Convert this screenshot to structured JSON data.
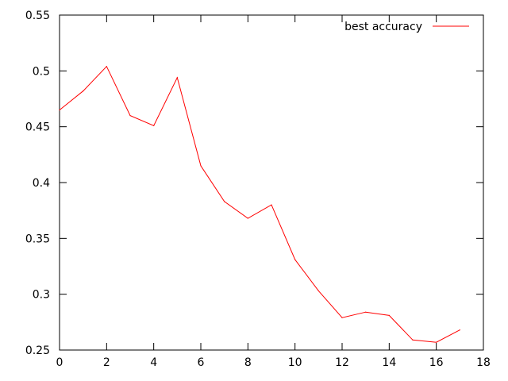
{
  "chart_data": {
    "type": "line",
    "title": "",
    "xlabel": "",
    "ylabel": "",
    "xlim": [
      0,
      18
    ],
    "ylim": [
      0.25,
      0.55
    ],
    "x_ticks": [
      0,
      2,
      4,
      6,
      8,
      10,
      12,
      14,
      16,
      18
    ],
    "x_tick_labels": [
      "0",
      "2",
      "4",
      "6",
      "8",
      "10",
      "12",
      "14",
      "16",
      "18"
    ],
    "y_ticks": [
      0.25,
      0.3,
      0.35,
      0.4,
      0.45,
      0.5,
      0.55
    ],
    "y_tick_labels": [
      "0.25",
      "0.3",
      "0.35",
      "0.4",
      "0.45",
      "0.5",
      "0.55"
    ],
    "grid": false,
    "legend_position": "top-right",
    "series": [
      {
        "name": "best accuracy",
        "color": "#ff0000",
        "x": [
          0,
          1,
          2,
          3,
          4,
          5,
          6,
          7,
          8,
          9,
          10,
          11,
          12,
          13,
          14,
          15,
          16,
          17
        ],
        "y": [
          0.465,
          0.482,
          0.504,
          0.46,
          0.451,
          0.494,
          0.415,
          0.383,
          0.368,
          0.38,
          0.331,
          0.303,
          0.279,
          0.284,
          0.281,
          0.259,
          0.257,
          0.268
        ]
      }
    ]
  }
}
